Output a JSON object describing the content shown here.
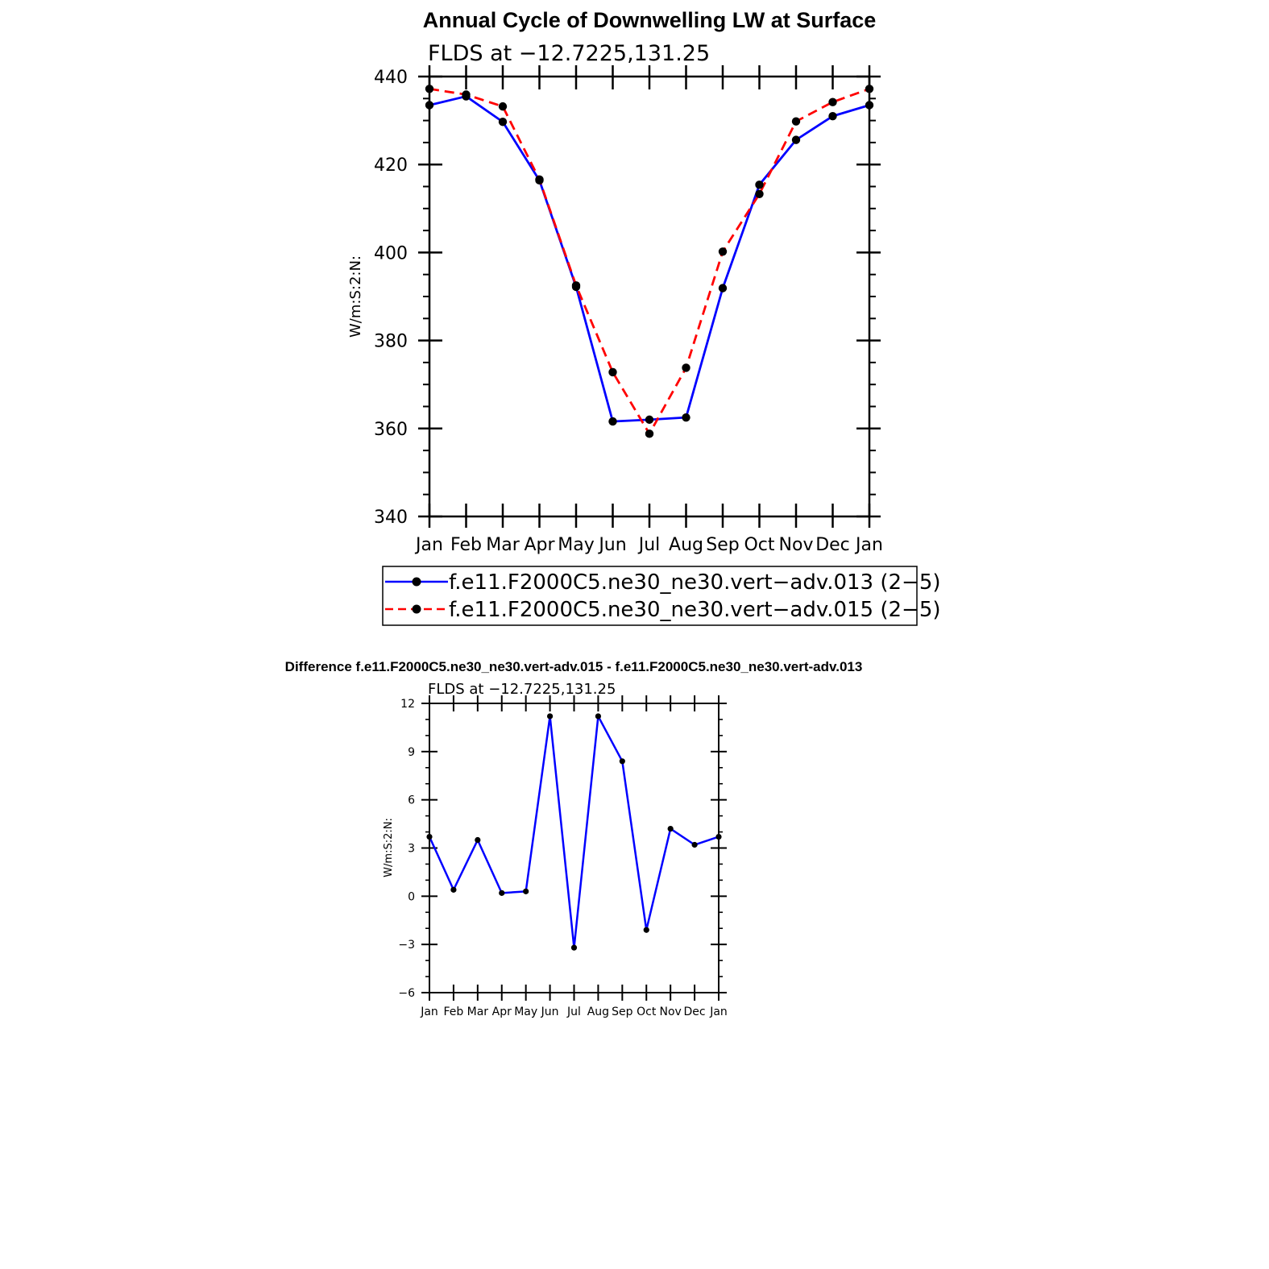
{
  "chart_data": [
    {
      "type": "line",
      "title": "Annual Cycle of Downwelling LW at Surface",
      "subtitle": "FLDS at −12.7225,131.25",
      "xlabel": "",
      "ylabel": "W/m:S:2:N:",
      "categories": [
        "Jan",
        "Feb",
        "Mar",
        "Apr",
        "May",
        "Jun",
        "Jul",
        "Aug",
        "Sep",
        "Oct",
        "Nov",
        "Dec",
        "Jan"
      ],
      "ylim": [
        340,
        440
      ],
      "yticks": [
        340,
        360,
        380,
        400,
        420,
        440
      ],
      "series": [
        {
          "name": "f.e11.F2000C5.ne30_ne30.vert−adv.013 (2−5)",
          "color": "#0000ff",
          "dash": "solid",
          "values": [
            433.5,
            435.5,
            429.7,
            416.4,
            392.2,
            361.6,
            362.0,
            362.5,
            391.9,
            415.4,
            425.6,
            431.0,
            433.5
          ]
        },
        {
          "name": "f.e11.F2000C5.ne30_ne30.vert−adv.015 (2−5)",
          "color": "#ff0000",
          "dash": "dashed",
          "values": [
            437.2,
            435.9,
            433.2,
            416.6,
            392.5,
            372.8,
            358.8,
            373.8,
            400.2,
            413.3,
            429.8,
            434.2,
            437.2
          ]
        }
      ],
      "legend": "below"
    },
    {
      "type": "line",
      "title": "Difference f.e11.F2000C5.ne30_ne30.vert-adv.015 - f.e11.F2000C5.ne30_ne30.vert-adv.013",
      "subtitle": "FLDS at −12.7225,131.25",
      "xlabel": "",
      "ylabel": "W/m:S:2:N:",
      "categories": [
        "Jan",
        "Feb",
        "Mar",
        "Apr",
        "May",
        "Jun",
        "Jul",
        "Aug",
        "Sep",
        "Oct",
        "Nov",
        "Dec",
        "Jan"
      ],
      "ylim": [
        -6,
        12
      ],
      "yticks": [
        -6,
        -3,
        0,
        3,
        6,
        9,
        12
      ],
      "series": [
        {
          "color": "#0000ff",
          "dash": "solid",
          "values": [
            3.7,
            0.4,
            3.5,
            0.2,
            0.3,
            11.2,
            -3.2,
            11.2,
            8.4,
            -2.1,
            4.2,
            3.2,
            3.7
          ]
        }
      ]
    }
  ]
}
